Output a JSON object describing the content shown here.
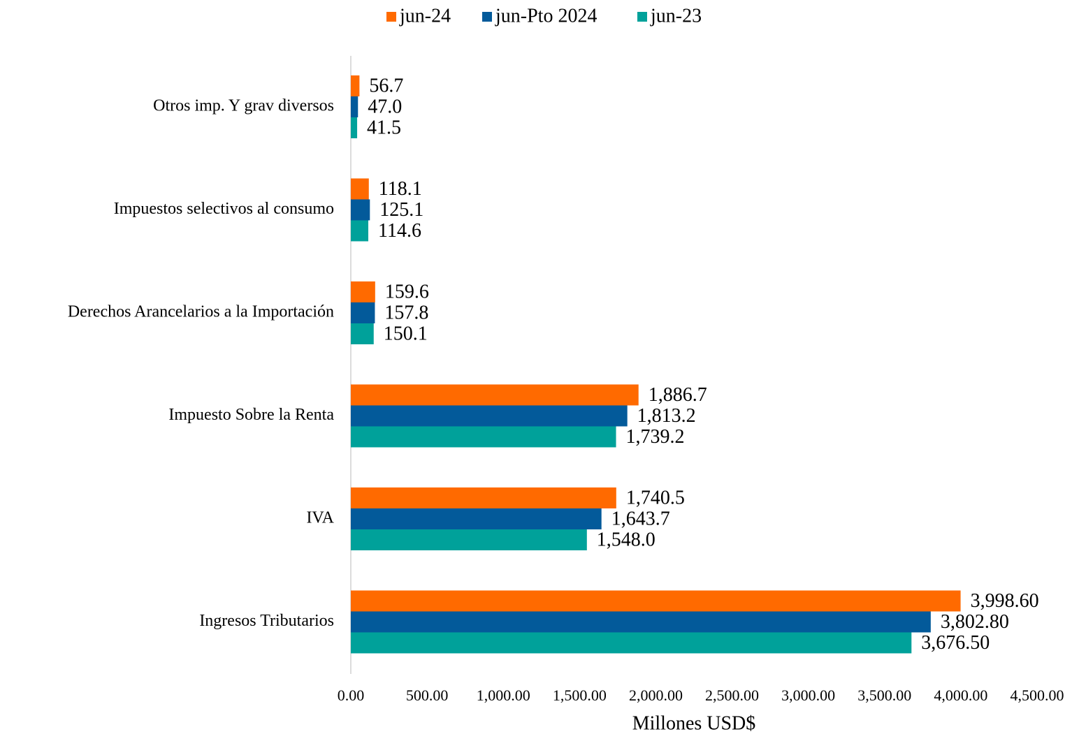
{
  "chart_data": {
    "type": "barh",
    "categories": [
      "Otros imp. Y grav diversos",
      "Impuestos selectivos al consumo",
      "Derechos Arancelarios a la Importación",
      "Impuesto Sobre la Renta",
      "IVA",
      "Ingresos Tributarios"
    ],
    "series": [
      {
        "name": "jun-24",
        "color": "#ff6a00",
        "values": [
          56.7,
          118.1,
          159.6,
          1886.7,
          1740.5,
          3998.6
        ],
        "value_labels": [
          "56.7",
          "118.1",
          "159.6",
          "1,886.7",
          "1,740.5",
          "3,998.60"
        ]
      },
      {
        "name": "jun-Pto 2024",
        "color": "#035a9a",
        "values": [
          47.0,
          125.1,
          157.8,
          1813.2,
          1643.7,
          3802.8
        ],
        "value_labels": [
          "47.0",
          "125.1",
          "157.8",
          "1,813.2",
          "1,643.7",
          "3,802.80"
        ]
      },
      {
        "name": "jun-23",
        "color": "#00a19a",
        "values": [
          41.5,
          114.6,
          150.1,
          1739.2,
          1548.0,
          3676.5
        ],
        "value_labels": [
          "41.5",
          "114.6",
          "150.1",
          "1,739.2",
          "1,548.0",
          "3,676.50"
        ]
      }
    ],
    "xlabel": "Millones USD$",
    "xlim": [
      0,
      4500
    ],
    "xticks": [
      {
        "value": 0,
        "label": "0.00"
      },
      {
        "value": 500,
        "label": "500.00"
      },
      {
        "value": 1000,
        "label": "1,000.00"
      },
      {
        "value": 1500,
        "label": "1,500.00"
      },
      {
        "value": 2000,
        "label": "2,000.00"
      },
      {
        "value": 2500,
        "label": "2,500.00"
      },
      {
        "value": 3000,
        "label": "3,000.00"
      },
      {
        "value": 3500,
        "label": "3,500.00"
      },
      {
        "value": 4000,
        "label": "4,000.00"
      },
      {
        "value": 4500,
        "label": "4,500.00"
      }
    ],
    "legend": "top"
  }
}
